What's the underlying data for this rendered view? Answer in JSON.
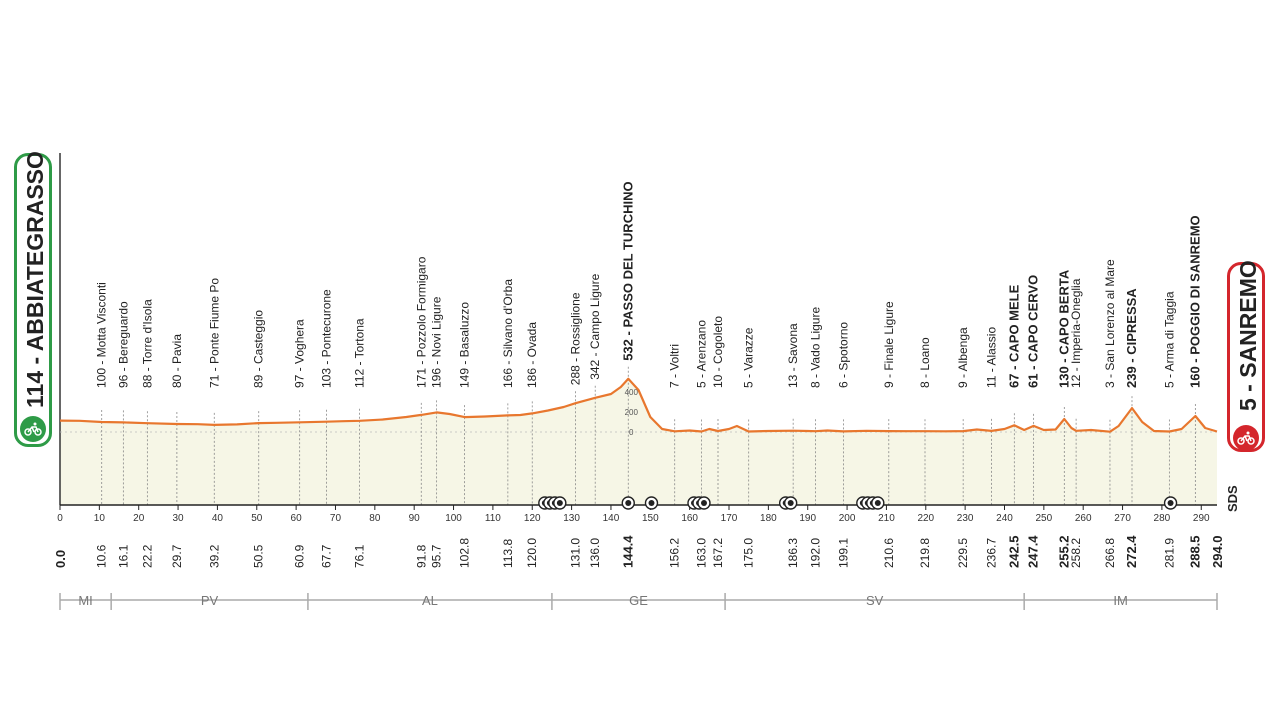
{
  "start": {
    "label": "114 - ABBIATEGRASSO",
    "color": "#2e9b47",
    "icon": "cyclist-icon"
  },
  "finish": {
    "label": "5 - SANREMO",
    "color": "#d4262c",
    "icon": "cyclist-icon"
  },
  "logo_text": "SDS",
  "chart_data": {
    "type": "area",
    "title": "",
    "xlabel": "",
    "ylabel": "",
    "xlim": [
      0,
      294
    ],
    "ylim": [
      0,
      600
    ],
    "x_ticks": [
      0,
      10,
      20,
      30,
      40,
      50,
      60,
      70,
      80,
      90,
      100,
      110,
      120,
      130,
      140,
      150,
      160,
      170,
      180,
      190,
      200,
      210,
      220,
      230,
      240,
      250,
      260,
      270,
      280,
      290
    ],
    "y_ticks": [
      0,
      200,
      400
    ],
    "line_color": "#e8772e",
    "fill_color": "#f6f6e6",
    "profile": [
      [
        0,
        114
      ],
      [
        5,
        112
      ],
      [
        10.6,
        100
      ],
      [
        16.1,
        96
      ],
      [
        22.2,
        88
      ],
      [
        29.7,
        80
      ],
      [
        35,
        78
      ],
      [
        39.2,
        71
      ],
      [
        45,
        76
      ],
      [
        50.5,
        89
      ],
      [
        55,
        92
      ],
      [
        60.9,
        97
      ],
      [
        67.7,
        103
      ],
      [
        72,
        108
      ],
      [
        76.1,
        112
      ],
      [
        82,
        125
      ],
      [
        88,
        150
      ],
      [
        91.8,
        171
      ],
      [
        95.7,
        196
      ],
      [
        99,
        180
      ],
      [
        102.8,
        149
      ],
      [
        108,
        155
      ],
      [
        113.8,
        166
      ],
      [
        117,
        170
      ],
      [
        120,
        186
      ],
      [
        124,
        215
      ],
      [
        128,
        250
      ],
      [
        131,
        288
      ],
      [
        136,
        342
      ],
      [
        140,
        380
      ],
      [
        142.5,
        450
      ],
      [
        144.4,
        532
      ],
      [
        147,
        420
      ],
      [
        150,
        150
      ],
      [
        153,
        30
      ],
      [
        156.2,
        7
      ],
      [
        160,
        15
      ],
      [
        163,
        5
      ],
      [
        165,
        30
      ],
      [
        167.2,
        10
      ],
      [
        170,
        30
      ],
      [
        172,
        60
      ],
      [
        175,
        5
      ],
      [
        180,
        10
      ],
      [
        186.3,
        13
      ],
      [
        190,
        10
      ],
      [
        192,
        8
      ],
      [
        195,
        15
      ],
      [
        199.1,
        6
      ],
      [
        205,
        12
      ],
      [
        210.6,
        9
      ],
      [
        215,
        8
      ],
      [
        219.8,
        8
      ],
      [
        225,
        7
      ],
      [
        229.5,
        9
      ],
      [
        233,
        25
      ],
      [
        236.7,
        11
      ],
      [
        240,
        30
      ],
      [
        242.5,
        67
      ],
      [
        245,
        20
      ],
      [
        247.4,
        61
      ],
      [
        250,
        20
      ],
      [
        253,
        25
      ],
      [
        255.2,
        130
      ],
      [
        257,
        40
      ],
      [
        258.2,
        12
      ],
      [
        262,
        20
      ],
      [
        266.8,
        3
      ],
      [
        269,
        60
      ],
      [
        272.4,
        239
      ],
      [
        275,
        100
      ],
      [
        278,
        10
      ],
      [
        281.9,
        5
      ],
      [
        285,
        30
      ],
      [
        288.5,
        160
      ],
      [
        291,
        40
      ],
      [
        294,
        5
      ]
    ],
    "locations": [
      {
        "km": "10.6",
        "x": 10.6,
        "label": "100 - Motta Visconti",
        "major": false
      },
      {
        "km": "16.1",
        "x": 16.1,
        "label": "96 - Bereguardo",
        "major": false
      },
      {
        "km": "22.2",
        "x": 22.2,
        "label": "88 - Torre d'Isola",
        "major": false
      },
      {
        "km": "29.7",
        "x": 29.7,
        "label": "80 - Pavia",
        "major": false
      },
      {
        "km": "39.2",
        "x": 39.2,
        "label": "71 - Ponte Fiume Po",
        "major": false
      },
      {
        "km": "50.5",
        "x": 50.5,
        "label": "89 - Casteggio",
        "major": false
      },
      {
        "km": "60.9",
        "x": 60.9,
        "label": "97 - Voghera",
        "major": false
      },
      {
        "km": "67.7",
        "x": 67.7,
        "label": "103 - Pontecurone",
        "major": false
      },
      {
        "km": "76.1",
        "x": 76.1,
        "label": "112 - Tortona",
        "major": false
      },
      {
        "km": "91.8",
        "x": 91.8,
        "label": "171 - Pozzolo Formigaro",
        "major": false
      },
      {
        "km": "95.7",
        "x": 95.7,
        "label": "196 - Novi Ligure",
        "major": false
      },
      {
        "km": "102.8",
        "x": 102.8,
        "label": "149 - Basaluzzo",
        "major": false
      },
      {
        "km": "113.8",
        "x": 113.8,
        "label": "166 - Silvano d'Orba",
        "major": false
      },
      {
        "km": "120.0",
        "x": 120.0,
        "label": "186 - Ovada",
        "major": false
      },
      {
        "km": "131.0",
        "x": 131.0,
        "label": "288 - Rossiglione",
        "major": false
      },
      {
        "km": "136.0",
        "x": 136.0,
        "label": "342 - Campo Ligure",
        "major": false
      },
      {
        "km": "144.4",
        "x": 144.4,
        "label": "532 - PASSO DEL TURCHINO",
        "major": true
      },
      {
        "km": "156.2",
        "x": 156.2,
        "label": "7 - Voltri",
        "major": false
      },
      {
        "km": "163.0",
        "x": 163.0,
        "label": "5 - Arenzano",
        "major": false
      },
      {
        "km": "167.2",
        "x": 167.2,
        "label": "10 - Cogoleto",
        "major": false
      },
      {
        "km": "175.0",
        "x": 175.0,
        "label": "5 - Varazze",
        "major": false
      },
      {
        "km": "186.3",
        "x": 186.3,
        "label": "13 - Savona",
        "major": false
      },
      {
        "km": "192.0",
        "x": 192.0,
        "label": "8 - Vado Ligure",
        "major": false
      },
      {
        "km": "199.1",
        "x": 199.1,
        "label": "6 - Spotorno",
        "major": false
      },
      {
        "km": "210.6",
        "x": 210.6,
        "label": "9 - Finale Ligure",
        "major": false
      },
      {
        "km": "219.8",
        "x": 219.8,
        "label": "8 - Loano",
        "major": false
      },
      {
        "km": "229.5",
        "x": 229.5,
        "label": "9 - Albenga",
        "major": false
      },
      {
        "km": "236.7",
        "x": 236.7,
        "label": "11 - Alassio",
        "major": false
      },
      {
        "km": "242.5",
        "x": 242.5,
        "label": "67 - CAPO MELE",
        "major": true
      },
      {
        "km": "247.4",
        "x": 247.4,
        "label": "61 - CAPO CERVO",
        "major": true
      },
      {
        "km": "255.2",
        "x": 255.2,
        "label": "130 - CAPO BERTA",
        "major": true
      },
      {
        "km": "258.2",
        "x": 258.2,
        "label": "12 - Imperia-Oneglia",
        "major": false
      },
      {
        "km": "266.8",
        "x": 266.8,
        "label": "3 - San Lorenzo al Mare",
        "major": false
      },
      {
        "km": "272.4",
        "x": 272.4,
        "label": "239 - CIPRESSA",
        "major": true
      },
      {
        "km": "281.9",
        "x": 281.9,
        "label": "5 - Arma di Taggia",
        "major": false
      },
      {
        "km": "288.5",
        "x": 288.5,
        "label": "160 - POGGIO DI SANREMO",
        "major": true
      }
    ],
    "endpoints": [
      {
        "km": "0.0",
        "x": 0
      },
      {
        "km": "294.0",
        "x": 294
      }
    ],
    "markers": [
      {
        "x": 123.2,
        "count": 4
      },
      {
        "x": 144.4,
        "count": 1
      },
      {
        "x": 150.3,
        "count": 1
      },
      {
        "x": 161.1,
        "count": 3
      },
      {
        "x": 184.4,
        "count": 2
      },
      {
        "x": 204.0,
        "count": 4
      },
      {
        "x": 282.2,
        "count": 1
      }
    ],
    "regions": [
      {
        "label": "MI",
        "from": 0,
        "to": 13
      },
      {
        "label": "PV",
        "from": 13,
        "to": 63
      },
      {
        "label": "AL",
        "from": 63,
        "to": 125
      },
      {
        "label": "GE",
        "from": 125,
        "to": 169
      },
      {
        "label": "SV",
        "from": 169,
        "to": 245
      },
      {
        "label": "IM",
        "from": 245,
        "to": 294
      }
    ]
  }
}
